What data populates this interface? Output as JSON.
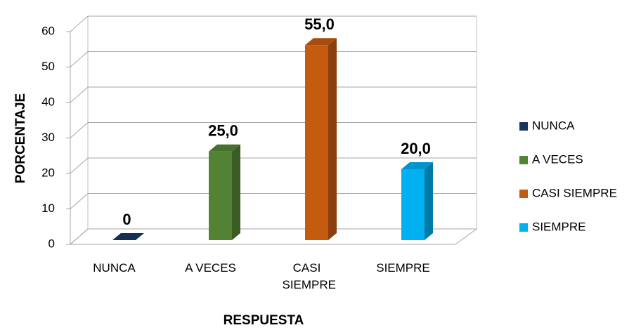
{
  "chart_data": {
    "type": "bar3d",
    "x_label": "RESPUESTA",
    "y_label": "PORCENTAJE",
    "categories": [
      "NUNCA",
      "A VECES",
      "CASI SIEMPRE",
      "SIEMPRE"
    ],
    "values": [
      0,
      25,
      55,
      20
    ],
    "value_labels": [
      "0",
      "25,0",
      "55,0",
      "20,0"
    ],
    "colors": [
      "#17375e",
      "#548235",
      "#c55a11",
      "#00b0f0"
    ],
    "ylim": [
      0,
      60
    ],
    "yticks": [
      0,
      10,
      20,
      30,
      40,
      50,
      60
    ],
    "grid": true,
    "legend": "right"
  }
}
